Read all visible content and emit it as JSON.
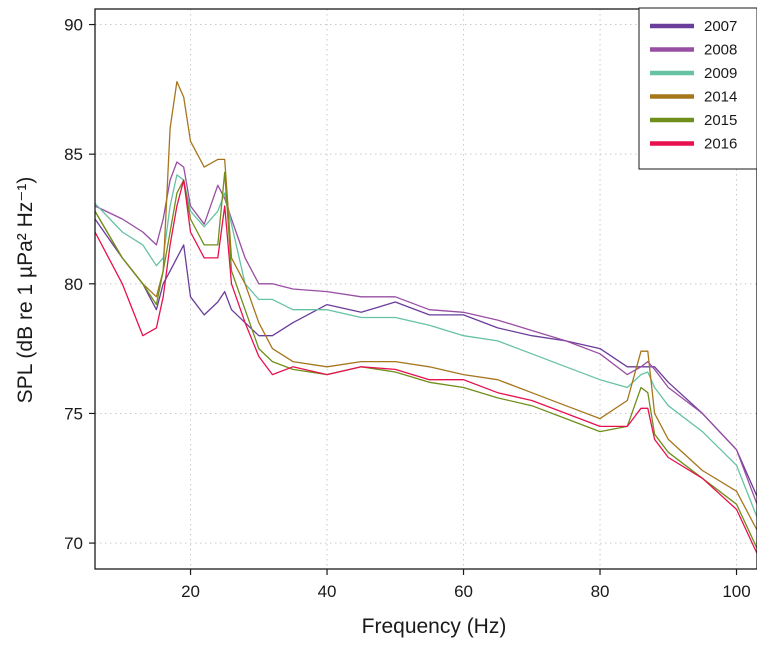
{
  "chart_data": {
    "type": "line",
    "title": "",
    "xlabel": "Frequency (Hz)",
    "ylabel": "SPL (dB re 1 µPa² Hz⁻¹)",
    "xlim": [
      6,
      103
    ],
    "ylim": [
      69.0,
      90.6
    ],
    "xticks": [
      20,
      40,
      60,
      80,
      100
    ],
    "yticks": [
      70,
      75,
      80,
      85,
      90
    ],
    "grid": true,
    "legend_position": "top-right",
    "x": [
      6,
      10,
      13,
      15,
      16,
      17,
      18,
      19,
      20,
      22,
      24,
      25,
      26,
      28,
      30,
      32,
      35,
      40,
      45,
      50,
      55,
      60,
      65,
      70,
      75,
      80,
      84,
      86,
      87,
      88,
      90,
      95,
      100,
      103
    ],
    "series": [
      {
        "name": "2007",
        "color": "#6a3d9a",
        "values": [
          82.5,
          81.0,
          80.0,
          79.0,
          80.0,
          80.5,
          81.0,
          81.5,
          79.5,
          78.8,
          79.3,
          79.7,
          79.0,
          78.5,
          78.0,
          78.0,
          78.5,
          79.2,
          78.9,
          79.3,
          78.8,
          78.8,
          78.3,
          78.0,
          77.8,
          77.5,
          76.8,
          76.8,
          76.8,
          76.8,
          76.2,
          75.0,
          73.6,
          71.8
        ]
      },
      {
        "name": "2008",
        "color": "#984ea3",
        "values": [
          83.0,
          82.5,
          82.0,
          81.5,
          82.5,
          84.0,
          84.7,
          84.5,
          83.0,
          82.3,
          83.8,
          83.3,
          82.5,
          81.0,
          80.0,
          80.0,
          79.8,
          79.7,
          79.5,
          79.5,
          79.0,
          78.9,
          78.6,
          78.2,
          77.8,
          77.3,
          76.5,
          76.8,
          77.0,
          76.7,
          76.0,
          75.0,
          73.6,
          71.5
        ]
      },
      {
        "name": "2009",
        "color": "#66c2a5",
        "values": [
          83.1,
          82.0,
          81.5,
          80.7,
          81.0,
          83.0,
          84.2,
          84.0,
          82.8,
          82.2,
          82.8,
          83.5,
          82.3,
          80.0,
          79.4,
          79.4,
          79.0,
          79.0,
          78.7,
          78.7,
          78.4,
          78.0,
          77.8,
          77.3,
          76.8,
          76.3,
          76.0,
          76.5,
          76.6,
          76.0,
          75.3,
          74.3,
          73.0,
          71.0
        ]
      },
      {
        "name": "2014",
        "color": "#a6761d",
        "values": [
          82.8,
          81.0,
          80.0,
          79.5,
          80.5,
          86.0,
          87.8,
          87.2,
          85.5,
          84.5,
          84.8,
          84.8,
          81.0,
          80.0,
          78.5,
          77.5,
          77.0,
          76.8,
          77.0,
          77.0,
          76.8,
          76.5,
          76.3,
          75.8,
          75.3,
          74.8,
          75.5,
          77.4,
          77.4,
          75.0,
          74.0,
          72.8,
          72.0,
          70.5
        ]
      },
      {
        "name": "2015",
        "color": "#6f8f1a",
        "values": [
          82.8,
          81.0,
          80.0,
          79.2,
          80.5,
          82.0,
          83.5,
          84.0,
          82.5,
          81.5,
          81.5,
          84.3,
          80.5,
          79.0,
          77.5,
          77.0,
          76.7,
          76.5,
          76.8,
          76.6,
          76.2,
          76.0,
          75.6,
          75.3,
          74.8,
          74.3,
          74.5,
          76.0,
          75.8,
          74.2,
          73.5,
          72.5,
          71.5,
          69.8
        ]
      },
      {
        "name": "2016",
        "color": "#e7114f",
        "values": [
          82.0,
          80.0,
          78.0,
          78.3,
          79.5,
          81.5,
          83.0,
          84.0,
          82.0,
          81.0,
          81.0,
          83.0,
          80.0,
          78.5,
          77.2,
          76.5,
          76.8,
          76.5,
          76.8,
          76.7,
          76.3,
          76.3,
          75.8,
          75.5,
          75.0,
          74.5,
          74.5,
          75.2,
          75.2,
          74.0,
          73.3,
          72.5,
          71.3,
          69.6
        ]
      }
    ]
  }
}
